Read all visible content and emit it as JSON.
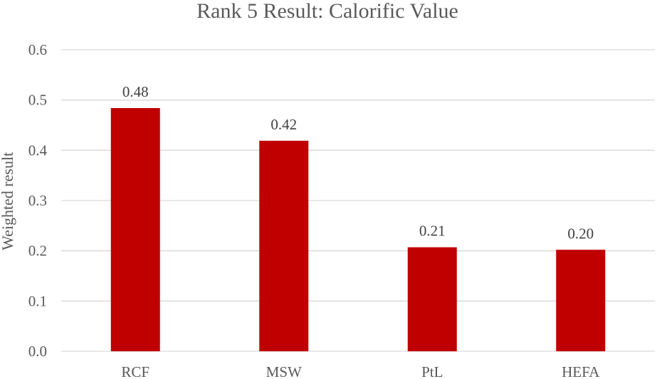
{
  "chart_data": {
    "type": "bar",
    "title": "Rank 5 Result: Calorific Value",
    "xlabel": "",
    "ylabel": "Weighted result",
    "categories": [
      "RCF",
      "MSW",
      "PtL",
      "HEFA"
    ],
    "values": [
      0.484,
      0.419,
      0.207,
      0.202
    ],
    "data_labels": [
      "0.48",
      "0.42",
      "0.21",
      "0.20"
    ],
    "ylim": [
      0,
      0.6
    ],
    "yticks": [
      0.0,
      0.1,
      0.2,
      0.3,
      0.4,
      0.5,
      0.6
    ],
    "ytick_labels": [
      "0.0",
      "0.1",
      "0.2",
      "0.3",
      "0.4",
      "0.5",
      "0.6"
    ],
    "grid": true,
    "legend": "none",
    "bar_color": "#c00000"
  }
}
